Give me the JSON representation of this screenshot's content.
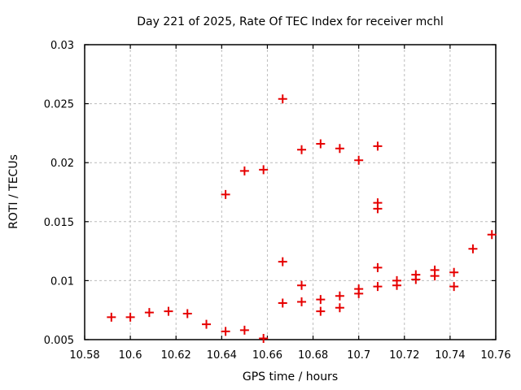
{
  "page": {
    "background_color": "#ffffff",
    "text_color": "#000000"
  },
  "chart_data": {
    "type": "scatter",
    "title": "Day 221 of 2025, Rate Of TEC Index for receiver mchl",
    "xlabel": "GPS time / hours",
    "ylabel": "ROTI / TECUs",
    "xlim": [
      10.58,
      10.76
    ],
    "ylim": [
      0.005,
      0.03
    ],
    "x_ticks": [
      10.58,
      10.6,
      10.62,
      10.64,
      10.66,
      10.68,
      10.7,
      10.72,
      10.74,
      10.76
    ],
    "x_tick_labels": [
      "10.58",
      "10.6",
      "10.62",
      "10.64",
      "10.66",
      "10.68",
      "10.7",
      "10.72",
      "10.74",
      "10.76"
    ],
    "y_ticks": [
      0.005,
      0.01,
      0.015,
      0.02,
      0.025,
      0.03
    ],
    "y_tick_labels": [
      "0.005",
      "0.01",
      "0.015",
      "0.02",
      "0.025",
      "0.03"
    ],
    "grid": true,
    "grid_style": "dashed-gray",
    "legend": "none",
    "marker": {
      "shape": "plus",
      "color": "#e60000",
      "size": 11,
      "stroke_width": 2
    },
    "series": [
      {
        "name": "ROTI",
        "points": [
          [
            10.5917,
            0.0069
          ],
          [
            10.6,
            0.0069
          ],
          [
            10.6083,
            0.0073
          ],
          [
            10.6167,
            0.0074
          ],
          [
            10.625,
            0.0072
          ],
          [
            10.6333,
            0.0063
          ],
          [
            10.6417,
            0.0173
          ],
          [
            10.6417,
            0.0057
          ],
          [
            10.65,
            0.0193
          ],
          [
            10.65,
            0.0058
          ],
          [
            10.6583,
            0.0194
          ],
          [
            10.6583,
            0.0051
          ],
          [
            10.6667,
            0.0254
          ],
          [
            10.6667,
            0.0116
          ],
          [
            10.6667,
            0.0081
          ],
          [
            10.675,
            0.0211
          ],
          [
            10.675,
            0.0096
          ],
          [
            10.675,
            0.0082
          ],
          [
            10.6833,
            0.0216
          ],
          [
            10.6833,
            0.0084
          ],
          [
            10.6833,
            0.0074
          ],
          [
            10.6917,
            0.0212
          ],
          [
            10.6917,
            0.0087
          ],
          [
            10.6917,
            0.0077
          ],
          [
            10.7,
            0.0202
          ],
          [
            10.7,
            0.0093
          ],
          [
            10.7,
            0.0089
          ],
          [
            10.7083,
            0.0214
          ],
          [
            10.7083,
            0.0166
          ],
          [
            10.7083,
            0.0161
          ],
          [
            10.7083,
            0.0111
          ],
          [
            10.7083,
            0.0095
          ],
          [
            10.7167,
            0.01
          ],
          [
            10.7167,
            0.0096
          ],
          [
            10.725,
            0.0105
          ],
          [
            10.725,
            0.0101
          ],
          [
            10.7333,
            0.0109
          ],
          [
            10.7333,
            0.0104
          ],
          [
            10.7417,
            0.0107
          ],
          [
            10.7417,
            0.0095
          ],
          [
            10.75,
            0.0127
          ],
          [
            10.7583,
            0.0139
          ]
        ]
      }
    ]
  }
}
